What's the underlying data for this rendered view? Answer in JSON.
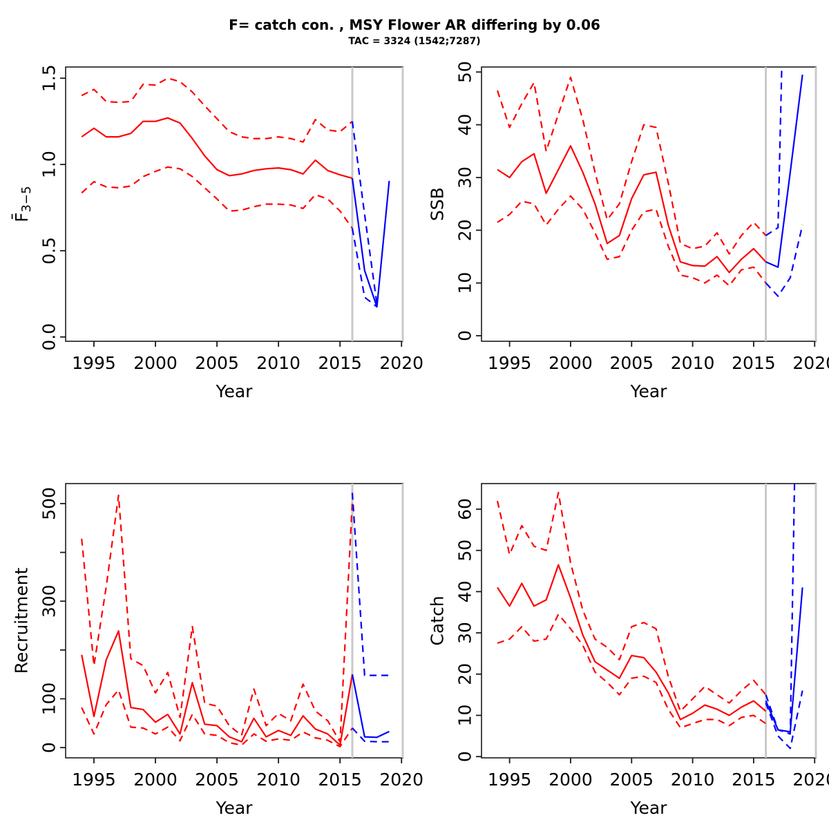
{
  "figure": {
    "title": "F= catch con. , MSY Flower AR differing by 0.06",
    "subtitle": "TAC = 3324 (1542;7287)"
  },
  "colors": {
    "historical": "#ff0000",
    "projection": "#0000ff",
    "reference_line": "#c9c9c9",
    "axis": "#1a1a1a"
  },
  "chart_data": [
    {
      "type": "line",
      "name": "fishing-mortality",
      "ylabel": "F̄",
      "ylabel_sub": "3−5",
      "xlabel": "Year",
      "xlim": [
        1992.7,
        2020.1
      ],
      "ylim": [
        -0.025,
        1.565
      ],
      "xticks": [
        1995,
        2000,
        2005,
        2010,
        2015,
        2020
      ],
      "yticks": [
        0,
        0.5,
        1,
        1.5
      ],
      "ytick_labels": [
        "0.0",
        "0.5",
        "1.0",
        "1.5"
      ],
      "vlines": [
        2016,
        2020.1
      ],
      "legend": "none",
      "grid": false,
      "series": [
        {
          "name": "historical-median",
          "color": "historical",
          "dash": false,
          "x_start": 1994,
          "values": [
            1.16,
            1.21,
            1.16,
            1.16,
            1.18,
            1.25,
            1.25,
            1.27,
            1.24,
            1.15,
            1.05,
            0.97,
            0.935,
            0.945,
            0.965,
            0.975,
            0.98,
            0.97,
            0.945,
            1.025,
            0.965,
            0.94,
            0.92
          ]
        },
        {
          "name": "historical-upper-ci",
          "color": "historical",
          "dash": true,
          "x_start": 1994,
          "values": [
            1.4,
            1.435,
            1.365,
            1.36,
            1.365,
            1.465,
            1.46,
            1.5,
            1.48,
            1.42,
            1.34,
            1.265,
            1.19,
            1.16,
            1.15,
            1.15,
            1.16,
            1.15,
            1.13,
            1.26,
            1.2,
            1.19,
            1.25
          ]
        },
        {
          "name": "historical-lower-ci",
          "color": "historical",
          "dash": true,
          "x_start": 1994,
          "values": [
            0.835,
            0.9,
            0.87,
            0.865,
            0.875,
            0.93,
            0.96,
            0.985,
            0.975,
            0.93,
            0.865,
            0.8,
            0.73,
            0.735,
            0.755,
            0.77,
            0.77,
            0.765,
            0.745,
            0.825,
            0.8,
            0.73,
            0.63
          ]
        },
        {
          "name": "projection-median",
          "color": "projection",
          "dash": false,
          "x_start": 2016,
          "values": [
            0.92,
            0.385,
            0.175,
            0.905
          ]
        },
        {
          "name": "projection-upper-ci",
          "color": "projection",
          "dash": true,
          "x_start": 2016,
          "values": [
            1.25,
            0.71,
            0.19
          ]
        },
        {
          "name": "projection-lower-ci",
          "color": "projection",
          "dash": true,
          "x_start": 2016,
          "values": [
            0.63,
            0.23,
            0.175
          ]
        }
      ]
    },
    {
      "type": "line",
      "name": "ssb",
      "ylabel": "SSB",
      "xlabel": "Year",
      "xlim": [
        1992.7,
        2020.1
      ],
      "ylim": [
        -1.05,
        50.95
      ],
      "xticks": [
        1995,
        2000,
        2005,
        2010,
        2015,
        2020
      ],
      "yticks": [
        0,
        10,
        20,
        30,
        40,
        50
      ],
      "ytick_labels": [
        "0",
        "10",
        "20",
        "30",
        "40",
        "50"
      ],
      "vlines": [
        2016,
        2020.1
      ],
      "legend": "none",
      "grid": false,
      "series": [
        {
          "name": "historical-median",
          "color": "historical",
          "dash": false,
          "x_start": 1994,
          "values": [
            31.5,
            30,
            33,
            34.5,
            27,
            31.5,
            36,
            31,
            25,
            17.5,
            19,
            26,
            30.5,
            31,
            21,
            14,
            13.3,
            13.2,
            15,
            12,
            14.5,
            16.5,
            14
          ]
        },
        {
          "name": "historical-upper-ci",
          "color": "historical",
          "dash": true,
          "x_start": 1994,
          "values": [
            46.5,
            39.5,
            44,
            48,
            35,
            42,
            49,
            41,
            31,
            22,
            25,
            33,
            40,
            39.5,
            29,
            17.5,
            16.5,
            17,
            19.5,
            15.5,
            19,
            21.5,
            19
          ]
        },
        {
          "name": "historical-lower-ci",
          "color": "historical",
          "dash": true,
          "x_start": 1994,
          "values": [
            21.5,
            23,
            25.5,
            25,
            21,
            24,
            26.5,
            24,
            19.5,
            14.5,
            15,
            20,
            23.5,
            24,
            17,
            11.5,
            11,
            10,
            11.5,
            9.5,
            12.5,
            13,
            10
          ]
        },
        {
          "name": "projection-median",
          "color": "projection",
          "dash": false,
          "x_start": 2016,
          "values": [
            14,
            13,
            31,
            49.5
          ]
        },
        {
          "name": "projection-upper-ci",
          "color": "projection",
          "dash": true,
          "x_start": 2016,
          "values": [
            19,
            20.5,
            120
          ]
        },
        {
          "name": "projection-lower-ci",
          "color": "projection",
          "dash": true,
          "x_start": 2016,
          "values": [
            10,
            7.5,
            11,
            21
          ]
        }
      ]
    },
    {
      "type": "line",
      "name": "recruitment",
      "ylabel": "Recruitment",
      "xlabel": "Year",
      "xlim": [
        1992.7,
        2020.1
      ],
      "ylim": [
        -21,
        541
      ],
      "xticks": [
        1995,
        2000,
        2005,
        2010,
        2015,
        2020
      ],
      "yticks": [
        0,
        100,
        200,
        300,
        400,
        500
      ],
      "ytick_labels": [
        "0",
        "100",
        "",
        "300",
        "",
        "500"
      ],
      "vlines": [
        2016,
        2020.1
      ],
      "legend": "none",
      "grid": false,
      "series": [
        {
          "name": "historical-median",
          "color": "historical",
          "dash": false,
          "x_start": 1994,
          "values": [
            190,
            64,
            180,
            239,
            82,
            78,
            52,
            68,
            28,
            133,
            48,
            45,
            22,
            12,
            60,
            22,
            35,
            25,
            65,
            38,
            28,
            5,
            150
          ]
        },
        {
          "name": "historical-upper-ci",
          "color": "historical",
          "dash": true,
          "x_start": 1994,
          "values": [
            428,
            168,
            330,
            517,
            182,
            168,
            112,
            154,
            62,
            248,
            91,
            85,
            45,
            25,
            120,
            45,
            70,
            55,
            130,
            75,
            55,
            12,
            505
          ]
        },
        {
          "name": "historical-lower-ci",
          "color": "historical",
          "dash": true,
          "x_start": 1994,
          "values": [
            82,
            28,
            88,
            118,
            42,
            40,
            28,
            42,
            14,
            68,
            28,
            25,
            10,
            5,
            28,
            13,
            18,
            15,
            32,
            20,
            15,
            2,
            40
          ]
        },
        {
          "name": "projection-median",
          "color": "projection",
          "dash": false,
          "x_start": 2016,
          "values": [
            150,
            22,
            21,
            33
          ]
        },
        {
          "name": "projection-upper-ci",
          "color": "projection",
          "dash": true,
          "x_start": 2016,
          "values": [
            522,
            148,
            148,
            148
          ]
        },
        {
          "name": "projection-lower-ci",
          "color": "projection",
          "dash": true,
          "x_start": 2016,
          "values": [
            40,
            13,
            12,
            12
          ]
        }
      ]
    },
    {
      "type": "line",
      "name": "catch",
      "ylabel": "Catch",
      "xlabel": "Year",
      "xlim": [
        1992.7,
        2020.1
      ],
      "ylim": [
        -0.3,
        66.2
      ],
      "xticks": [
        1995,
        2000,
        2005,
        2010,
        2015,
        2020
      ],
      "yticks": [
        0,
        10,
        20,
        30,
        40,
        50,
        60
      ],
      "ytick_labels": [
        "0",
        "10",
        "20",
        "30",
        "40",
        "50",
        "60"
      ],
      "vlines": [
        2016,
        2020.1
      ],
      "legend": "none",
      "grid": false,
      "series": [
        {
          "name": "historical-median",
          "color": "historical",
          "dash": false,
          "x_start": 1994,
          "values": [
            41,
            36.5,
            42,
            36.5,
            38,
            46.5,
            38.5,
            29.5,
            23,
            21,
            19,
            24.5,
            24,
            20.5,
            15.5,
            9,
            10.5,
            12.5,
            11.5,
            10,
            12,
            13.5,
            11
          ]
        },
        {
          "name": "historical-upper-ci",
          "color": "historical",
          "dash": true,
          "x_start": 1994,
          "values": [
            62,
            49,
            56,
            51,
            50,
            64,
            47,
            35.5,
            28.5,
            26.5,
            23.5,
            31.5,
            32.5,
            31,
            19.5,
            11,
            14,
            17,
            15,
            13,
            16,
            18.5,
            15
          ]
        },
        {
          "name": "historical-lower-ci",
          "color": "historical",
          "dash": true,
          "x_start": 1994,
          "values": [
            27.5,
            28.5,
            31.5,
            28,
            28.5,
            34.5,
            31,
            27,
            20.5,
            18,
            15,
            19,
            19.5,
            18,
            11.5,
            7,
            8,
            9,
            9,
            7.5,
            9.5,
            10,
            8
          ]
        },
        {
          "name": "projection-median",
          "color": "projection",
          "dash": false,
          "x_start": 2016,
          "values": [
            13.5,
            6.5,
            6,
            41
          ]
        },
        {
          "name": "projection-upper-ci",
          "color": "projection",
          "dash": true,
          "x_start": 2016,
          "values": [
            15,
            6.5,
            5.5,
            180
          ]
        },
        {
          "name": "projection-lower-ci",
          "color": "projection",
          "dash": true,
          "x_start": 2016,
          "values": [
            13,
            5,
            2,
            16
          ]
        }
      ]
    }
  ]
}
